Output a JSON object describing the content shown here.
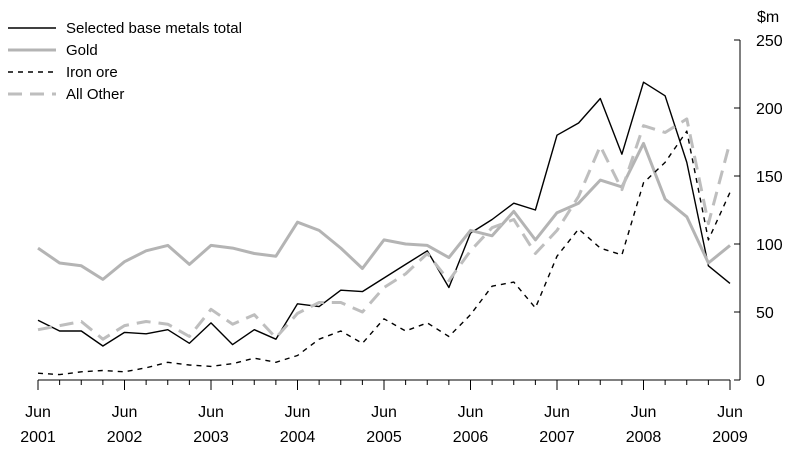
{
  "chart_data": {
    "type": "line",
    "y_unit": "$m",
    "ylim": [
      0,
      250
    ],
    "yticks": [
      0,
      50,
      100,
      150,
      200,
      250
    ],
    "grid": false,
    "y_axis_side": "right",
    "legend_position": "top-left",
    "x_tick_labels": [
      [
        "Jun",
        "2001"
      ],
      [
        "Jun",
        "2002"
      ],
      [
        "Jun",
        "2003"
      ],
      [
        "Jun",
        "2004"
      ],
      [
        "Jun",
        "2005"
      ],
      [
        "Jun",
        "2006"
      ],
      [
        "Jun",
        "2007"
      ],
      [
        "Jun",
        "2008"
      ],
      [
        "Jun",
        "2009"
      ]
    ],
    "x": [
      "Jun 2001",
      "Sep 2001",
      "Dec 2001",
      "Mar 2002",
      "Jun 2002",
      "Sep 2002",
      "Dec 2002",
      "Mar 2003",
      "Jun 2003",
      "Sep 2003",
      "Dec 2003",
      "Mar 2004",
      "Jun 2004",
      "Sep 2004",
      "Dec 2004",
      "Mar 2005",
      "Jun 2005",
      "Sep 2005",
      "Dec 2005",
      "Mar 2006",
      "Jun 2006",
      "Sep 2006",
      "Dec 2006",
      "Mar 2007",
      "Jun 2007",
      "Sep 2007",
      "Dec 2007",
      "Mar 2008",
      "Jun 2008",
      "Sep 2008",
      "Dec 2008",
      "Mar 2009",
      "Jun 2009"
    ],
    "series": [
      {
        "name": "Selected base metals total",
        "color": "#000000",
        "style": "solid",
        "values": [
          44,
          36,
          36,
          25,
          35,
          34,
          37,
          27,
          42,
          26,
          37,
          30,
          56,
          54,
          66,
          65,
          75,
          85,
          95,
          68,
          108,
          118,
          130,
          125,
          180,
          189,
          207,
          166,
          219,
          209,
          160,
          84,
          71
        ]
      },
      {
        "name": "Gold",
        "color": "#b4b4b4",
        "style": "solid",
        "values": [
          97,
          86,
          84,
          74,
          87,
          95,
          99,
          85,
          99,
          97,
          93,
          91,
          116,
          110,
          97,
          82,
          103,
          100,
          99,
          90,
          110,
          106,
          124,
          103,
          123,
          130,
          147,
          142,
          174,
          133,
          120,
          86,
          99
        ]
      },
      {
        "name": "Iron ore",
        "color": "#000000",
        "style": "dotted",
        "values": [
          5,
          4,
          6,
          7,
          6,
          9,
          13,
          11,
          10,
          12,
          16,
          13,
          18,
          30,
          36,
          27,
          45,
          36,
          42,
          32,
          48,
          69,
          72,
          53,
          91,
          111,
          97,
          92,
          145,
          160,
          183,
          103,
          138
        ]
      },
      {
        "name": "All Other",
        "color": "#bebebe",
        "style": "dashed",
        "values": [
          37,
          40,
          43,
          30,
          40,
          43,
          41,
          32,
          52,
          41,
          48,
          31,
          49,
          57,
          57,
          50,
          68,
          78,
          93,
          73,
          95,
          112,
          118,
          93,
          110,
          135,
          172,
          140,
          187,
          182,
          192,
          115,
          175
        ]
      }
    ]
  }
}
